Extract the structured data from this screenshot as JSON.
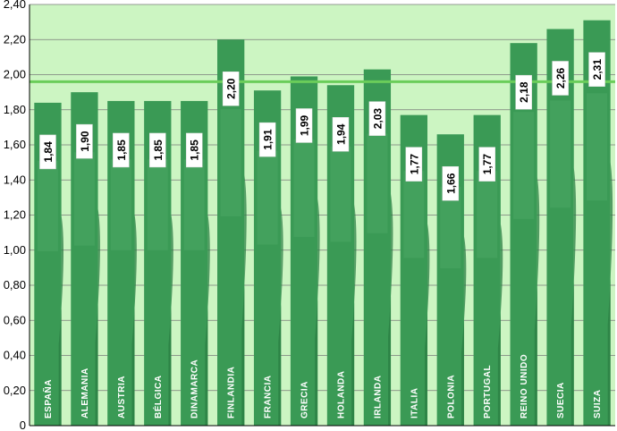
{
  "chart_data": {
    "type": "bar",
    "categories": [
      "ESPAÑA",
      "ALEMANIA",
      "AUSTRIA",
      "BÉLGICA",
      "DINAMARCA",
      "FINLANDIA",
      "FRANCIA",
      "GRECIA",
      "HOLANDA",
      "IRLANDA",
      "ITALIA",
      "POLONIA",
      "PORTUGAL",
      "REINO UNIDO",
      "SUECIA",
      "SUIZA"
    ],
    "values": [
      1.84,
      1.9,
      1.85,
      1.85,
      1.85,
      2.2,
      1.91,
      1.99,
      1.94,
      2.03,
      1.77,
      1.66,
      1.77,
      2.18,
      2.26,
      2.31
    ],
    "value_labels": [
      "1,84",
      "1,90",
      "1,85",
      "1,85",
      "1,85",
      "2,20",
      "1,91",
      "1,99",
      "1,94",
      "2,03",
      "1,77",
      "1,66",
      "1,77",
      "2,18",
      "2,26",
      "2,31"
    ],
    "yticks": [
      "0",
      "0,20",
      "0,40",
      "0,60",
      "0,80",
      "1,00",
      "1,20",
      "1,40",
      "1,60",
      "1,80",
      "2,00",
      "2,20",
      "2,40"
    ],
    "ylim": [
      0,
      2.4
    ],
    "reference_line": 1.96,
    "grid": true,
    "legend": "none",
    "colors": {
      "plot_background": "#ccf5c2",
      "bar": "#3a9a55",
      "bar_light": "#4aa865",
      "bar_dark": "#2b7d43",
      "reference_line": "#6acd5a",
      "gridline": "#7a7a7a"
    }
  }
}
